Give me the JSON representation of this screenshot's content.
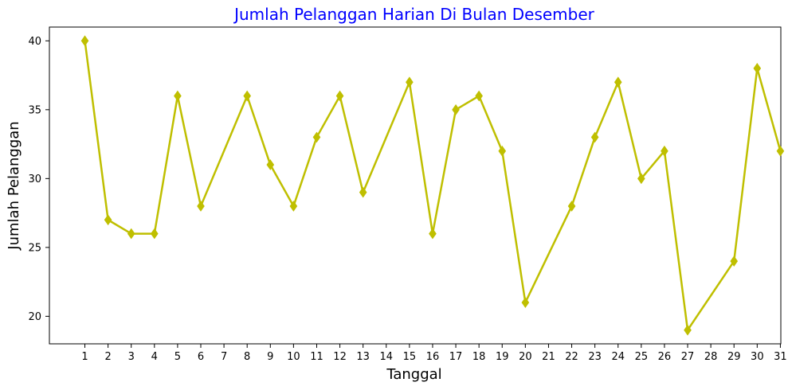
{
  "chart_data": {
    "type": "line",
    "title": "Jumlah Pelanggan Harian Di Bulan Desember",
    "xlabel": "Tanggal",
    "ylabel": "Jumlah Pelanggan",
    "categories": [
      "1",
      "2",
      "3",
      "4",
      "5",
      "6",
      "7",
      "8",
      "9",
      "10",
      "11",
      "12",
      "13",
      "14",
      "15",
      "16",
      "17",
      "18",
      "19",
      "20",
      "21",
      "22",
      "23",
      "24",
      "25",
      "26",
      "27",
      "28",
      "29",
      "30",
      "31"
    ],
    "series": [
      {
        "marker": "diamond",
        "points": [
          {
            "x": "1",
            "y": 40
          },
          {
            "x": "2",
            "y": 27
          },
          {
            "x": "3",
            "y": 26
          },
          {
            "x": "4",
            "y": 26
          },
          {
            "x": "5",
            "y": 36
          },
          {
            "x": "6",
            "y": 28
          },
          {
            "x": "8",
            "y": 36
          },
          {
            "x": "9",
            "y": 31
          },
          {
            "x": "10",
            "y": 28
          },
          {
            "x": "11",
            "y": 33
          },
          {
            "x": "12",
            "y": 36
          },
          {
            "x": "13",
            "y": 29
          },
          {
            "x": "15",
            "y": 37
          },
          {
            "x": "16",
            "y": 26
          },
          {
            "x": "17",
            "y": 35
          },
          {
            "x": "18",
            "y": 36
          },
          {
            "x": "19",
            "y": 32
          },
          {
            "x": "20",
            "y": 21
          },
          {
            "x": "22",
            "y": 28
          },
          {
            "x": "23",
            "y": 33
          },
          {
            "x": "24",
            "y": 37
          },
          {
            "x": "25",
            "y": 30
          },
          {
            "x": "26",
            "y": 32
          },
          {
            "x": "27",
            "y": 19
          },
          {
            "x": "29",
            "y": 24
          },
          {
            "x": "30",
            "y": 38
          },
          {
            "x": "31",
            "y": 32
          }
        ]
      }
    ],
    "yticks": [
      20,
      25,
      30,
      35,
      40
    ],
    "ylim": [
      18,
      41
    ],
    "grid": false,
    "colors": {
      "line": "#bfbf00",
      "title": "#0000ff",
      "axis": "#000000"
    }
  }
}
